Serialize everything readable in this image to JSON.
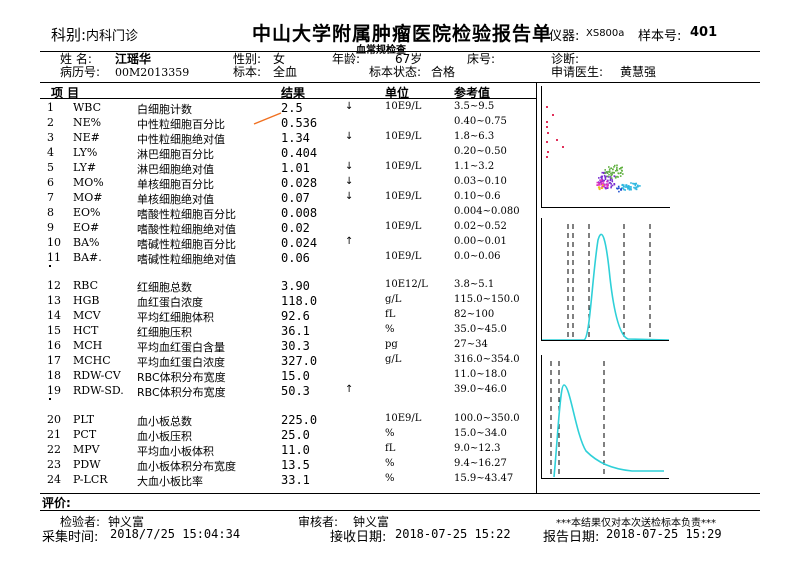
{
  "header": {
    "department_label": "科别:",
    "department": "内科门诊",
    "title": "中山大学附属肿瘤医院检验报告单",
    "subtitle": "血常规检查",
    "instrument_label": "仪器:",
    "instrument": "XS800a",
    "sample_label": "样本号:",
    "sample_no": "401"
  },
  "patient": {
    "name_label": "姓  名:",
    "name": "江瑶华",
    "sex_label": "性别:",
    "sex": "女",
    "age_label": "年龄:",
    "age": "67岁",
    "bed_label": "床号:",
    "bed": "",
    "diagnosis_label": "诊断:",
    "diagnosis": "",
    "record_label": "病历号:",
    "record_no": "00M2013359",
    "specimen_label": "标本:",
    "specimen": "全血",
    "specimen_status_label": "标本状态:",
    "specimen_status": "合格",
    "doctor_label": "申请医生:",
    "doctor": "黄慧强"
  },
  "columns": {
    "item": "项  目",
    "result": "结果",
    "unit": "单位",
    "reference": "参考值"
  },
  "results": [
    {
      "no": "1",
      "code": "WBC",
      "name": "白细胞计数",
      "value": "2.5",
      "flag": "↓",
      "unit": "10E9/L",
      "ref": "3.5~9.5"
    },
    {
      "no": "2",
      "code": "NE%",
      "name": "中性粒细胞百分比",
      "value": "0.536",
      "flag": "",
      "unit": "",
      "ref": "0.40~0.75"
    },
    {
      "no": "3",
      "code": "NE#",
      "name": "中性粒细胞绝对值",
      "value": "1.34",
      "flag": "↓",
      "unit": "10E9/L",
      "ref": "1.8~6.3"
    },
    {
      "no": "4",
      "code": "LY%",
      "name": "淋巴细胞百分比",
      "value": "0.404",
      "flag": "",
      "unit": "",
      "ref": "0.20~0.50"
    },
    {
      "no": "5",
      "code": "LY#",
      "name": "淋巴细胞绝对值",
      "value": "1.01",
      "flag": "↓",
      "unit": "10E9/L",
      "ref": "1.1~3.2"
    },
    {
      "no": "6",
      "code": "MO%",
      "name": "单核细胞百分比",
      "value": "0.028",
      "flag": "↓",
      "unit": "",
      "ref": "0.03~0.10"
    },
    {
      "no": "7",
      "code": "MO#",
      "name": "单核细胞绝对值",
      "value": "0.07",
      "flag": "↓",
      "unit": "10E9/L",
      "ref": "0.10~0.6"
    },
    {
      "no": "8",
      "code": "EO%",
      "name": "嗜酸性粒细胞百分比",
      "value": "0.008",
      "flag": "",
      "unit": "",
      "ref": "0.004~0.080"
    },
    {
      "no": "9",
      "code": "EO#",
      "name": "嗜酸性粒细胞绝对值",
      "value": "0.02",
      "flag": "",
      "unit": "10E9/L",
      "ref": "0.02~0.52"
    },
    {
      "no": "10",
      "code": "BA%",
      "name": "嗜碱性粒细胞百分比",
      "value": "0.024",
      "flag": "↑",
      "unit": "",
      "ref": "0.00~0.01"
    },
    {
      "no": "11",
      "code": "BA#.",
      "name": "嗜碱性粒细胞绝对值",
      "value": "0.06",
      "flag": "",
      "unit": "10E9/L",
      "ref": "0.0~0.06"
    },
    {
      "no": "12",
      "code": "RBC",
      "name": "红细胞总数",
      "value": "3.90",
      "flag": "",
      "unit": "10E12/L",
      "ref": "3.8~5.1"
    },
    {
      "no": "13",
      "code": "HGB",
      "name": "血红蛋白浓度",
      "value": "118.0",
      "flag": "",
      "unit": "g/L",
      "ref": "115.0~150.0"
    },
    {
      "no": "14",
      "code": "MCV",
      "name": "平均红细胞体积",
      "value": "92.6",
      "flag": "",
      "unit": "fL",
      "ref": "82~100"
    },
    {
      "no": "15",
      "code": "HCT",
      "name": "红细胞压积",
      "value": "36.1",
      "flag": "",
      "unit": "%",
      "ref": "35.0~45.0"
    },
    {
      "no": "16",
      "code": "MCH",
      "name": "平均血红蛋白含量",
      "value": "30.3",
      "flag": "",
      "unit": "pg",
      "ref": "27~34"
    },
    {
      "no": "17",
      "code": "MCHC",
      "name": "平均血红蛋白浓度",
      "value": "327.0",
      "flag": "",
      "unit": "g/L",
      "ref": "316.0~354.0"
    },
    {
      "no": "18",
      "code": "RDW-CV",
      "name": "RBC体积分布宽度",
      "value": "15.0",
      "flag": "",
      "unit": "",
      "ref": "11.0~18.0"
    },
    {
      "no": "19",
      "code": "RDW-SD.",
      "name": "RBC体积分布宽度",
      "value": "50.3",
      "flag": "↑",
      "unit": "",
      "ref": "39.0~46.0"
    },
    {
      "no": "20",
      "code": "PLT",
      "name": "血小板总数",
      "value": "225.0",
      "flag": "",
      "unit": "10E9/L",
      "ref": "100.0~350.0"
    },
    {
      "no": "21",
      "code": "PCT",
      "name": "血小板压积",
      "value": "25.0",
      "flag": "",
      "unit": "%",
      "ref": "15.0~34.0"
    },
    {
      "no": "22",
      "code": "MPV",
      "name": "平均血小板体积",
      "value": "11.0",
      "flag": "",
      "unit": "fL",
      "ref": "9.0~12.3"
    },
    {
      "no": "23",
      "code": "PDW",
      "name": "血小板体积分布宽度",
      "value": "13.5",
      "flag": "",
      "unit": "%",
      "ref": "9.4~16.27"
    },
    {
      "no": "24",
      "code": "P-LCR",
      "name": "大血小板比率",
      "value": "33.1",
      "flag": "",
      "unit": "%",
      "ref": "15.9~43.47"
    }
  ],
  "footer": {
    "comment_label": "评价:",
    "tester_label": "检验者:",
    "tester": "钟义富",
    "reviewer_label": "审核者:",
    "reviewer": "钟义富",
    "disclaimer": "***本结果仅对本次送检标本负责***",
    "collect_label": "采集时间:",
    "collect_time": "2018/7/25 15:04:34",
    "receive_label": "接收日期:",
    "receive_time": "2018-07-25 15:22",
    "report_label": "报告日期:",
    "report_time": "2018-07-25 15:29"
  },
  "colors": {
    "curve": "#2fd0d8",
    "scatter_red": "#e0305a",
    "arrow": "#f07020"
  }
}
